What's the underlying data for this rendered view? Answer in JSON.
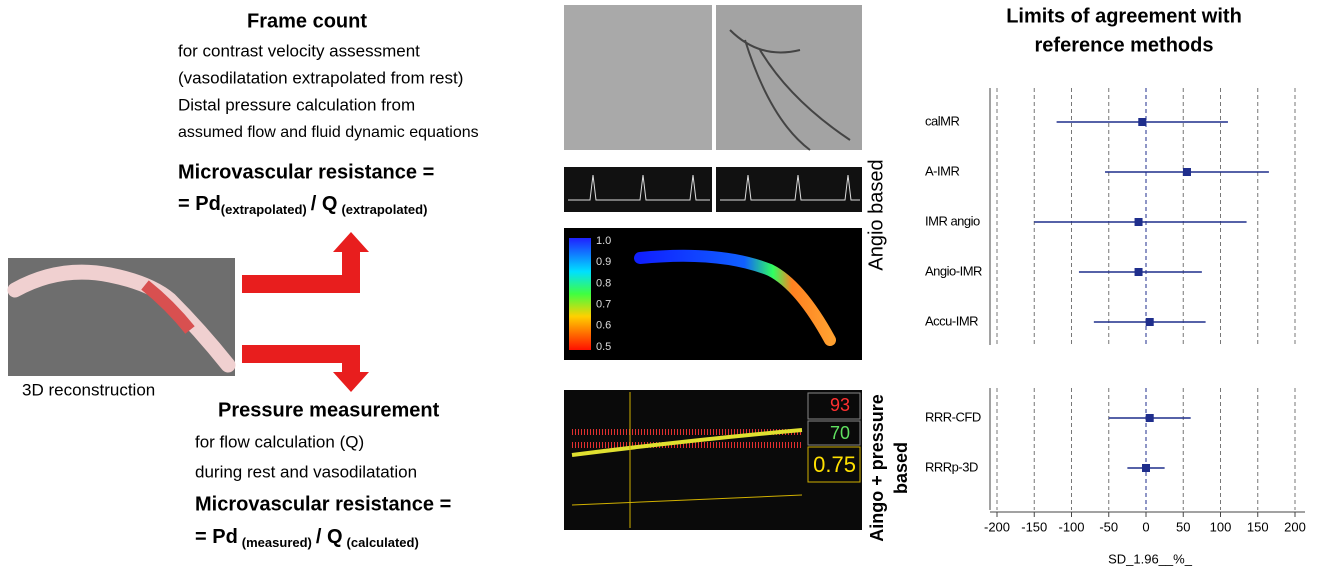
{
  "left": {
    "frame_count": {
      "title": "Frame count",
      "lines": [
        "for contrast velocity assessment",
        "(vasodilatation extrapolated from rest)",
        "Distal pressure calculation from",
        "assumed flow and fluid dynamic equations"
      ]
    },
    "formula1": {
      "label": "Microvascular resistance =",
      "prefix": "= Pd",
      "sub1": "(extrapolated)",
      "mid": "/ Q",
      "sub2": "(extrapolated)"
    },
    "reconstruction_label": "3D reconstruction",
    "pressure": {
      "title": "Pressure measurement",
      "lines": [
        "for flow calculation (Q)",
        "during rest and vasodilatation"
      ]
    },
    "formula2": {
      "label": "Microvascular resistance =",
      "prefix": "= Pd",
      "sub1": "(measured)",
      "mid": "/ Q",
      "sub2": "(calculated)"
    }
  },
  "middle": {
    "colorbar_ticks": [
      "1.0",
      "0.9",
      "0.8",
      "0.7",
      "0.6",
      "0.5"
    ],
    "monitor": [
      "93",
      "70",
      "0.75"
    ],
    "angio_label": "Angio based",
    "combined_label": [
      "Aingo + pressure",
      "based"
    ]
  },
  "chart_data": {
    "type": "forest",
    "title": [
      "Limits of agreement with",
      "reference methods"
    ],
    "groups": [
      {
        "categories": [
          "calMR",
          "A-IMR",
          "IMR angio",
          "Angio-IMR",
          "Accu-IMR"
        ],
        "values": [
          -5,
          55,
          -10,
          -10,
          5
        ],
        "lower": [
          -120,
          -55,
          -150,
          -90,
          -70
        ],
        "upper": [
          110,
          165,
          135,
          75,
          80
        ]
      },
      {
        "categories": [
          "RRR-CFD",
          "RRRp-3D"
        ],
        "values": [
          5,
          0
        ],
        "lower": [
          -50,
          -25
        ],
        "upper": [
          60,
          25
        ]
      }
    ],
    "xlim": [
      -200,
      200
    ],
    "xticks": [
      -200,
      -150,
      -100,
      -50,
      0,
      50,
      100,
      150,
      200
    ],
    "xlabel": "SD_1.96__%_",
    "color": "#1f2e8c",
    "grid": true
  }
}
